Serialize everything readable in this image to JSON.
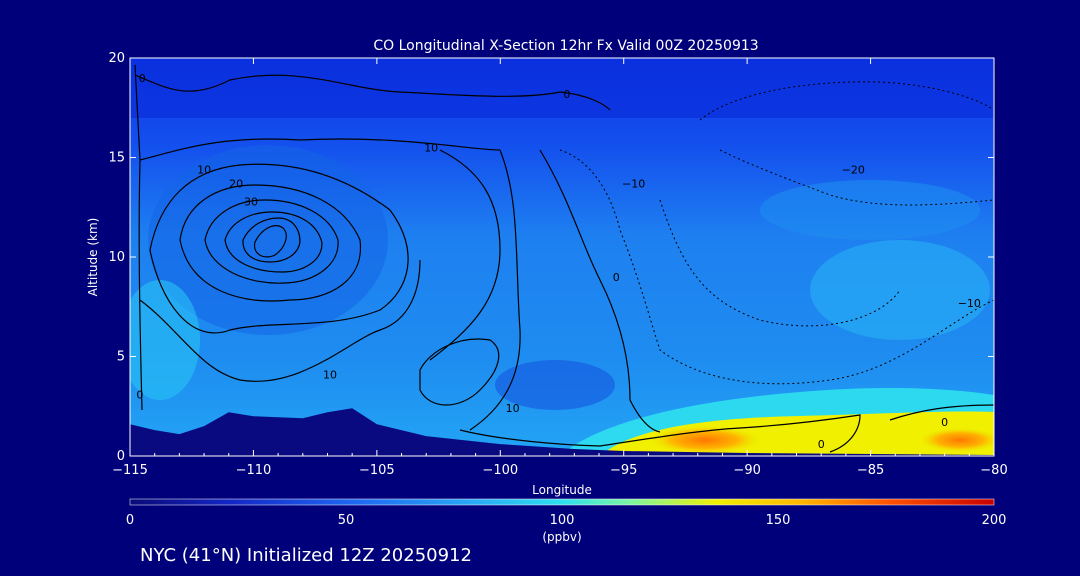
{
  "chart_data": {
    "type": "heatmap",
    "title": "CO Longitudinal X-Section 12hr  Fx Valid 00Z 20250913",
    "xlabel": "Longitude",
    "ylabel": "Altitude (km)",
    "xlim": [
      -115,
      -80
    ],
    "ylim": [
      0,
      20
    ],
    "x_ticks": [
      -115,
      -110,
      -105,
      -100,
      -95,
      -90,
      -85,
      -80
    ],
    "x_tick_labels": [
      "−115",
      "−110",
      "−105",
      "−100",
      "−95",
      "−90",
      "−85",
      "−80"
    ],
    "y_ticks": [
      0,
      5,
      10,
      15,
      20
    ],
    "y_tick_labels": [
      "0",
      "5",
      "10",
      "15",
      "20"
    ],
    "colorbar": {
      "min": 0,
      "max": 200,
      "ticks": [
        0,
        50,
        100,
        150,
        200
      ],
      "tick_labels": [
        "0",
        "50",
        "100",
        "150",
        "200"
      ],
      "unit": "(ppbv)",
      "colors": [
        "#0a0a78",
        "#1428c8",
        "#1e64f0",
        "#2aaaf5",
        "#2fe0ee",
        "#7df5a0",
        "#f0f000",
        "#ffb400",
        "#ff5000",
        "#c80000"
      ]
    },
    "terrain": [
      {
        "x": -115,
        "y": 1.6
      },
      {
        "x": -114,
        "y": 1.3
      },
      {
        "x": -113,
        "y": 1.1
      },
      {
        "x": -112,
        "y": 1.5
      },
      {
        "x": -111,
        "y": 2.2
      },
      {
        "x": -110,
        "y": 2.0
      },
      {
        "x": -108,
        "y": 1.9
      },
      {
        "x": -107,
        "y": 2.2
      },
      {
        "x": -106,
        "y": 2.4
      },
      {
        "x": -105,
        "y": 1.6
      },
      {
        "x": -103,
        "y": 1.0
      },
      {
        "x": -100,
        "y": 0.6
      },
      {
        "x": -97,
        "y": 0.35
      },
      {
        "x": -95,
        "y": 0.25
      },
      {
        "x": -90,
        "y": 0.15
      },
      {
        "x": -85,
        "y": 0.1
      },
      {
        "x": -80,
        "y": 0.05
      }
    ],
    "contour_labels": [
      {
        "text": "0",
        "x": -114.5,
        "y": 18.8
      },
      {
        "text": "0",
        "x": -97.3,
        "y": 18.0
      },
      {
        "text": "10",
        "x": -102.8,
        "y": 15.3
      },
      {
        "text": "10",
        "x": -112.0,
        "y": 14.2
      },
      {
        "text": "20",
        "x": -110.7,
        "y": 13.5
      },
      {
        "text": "30",
        "x": -110.1,
        "y": 12.6
      },
      {
        "text": "−10",
        "x": -94.6,
        "y": 13.5
      },
      {
        "text": "−20",
        "x": -85.7,
        "y": 14.2
      },
      {
        "text": "0",
        "x": -95.3,
        "y": 8.8
      },
      {
        "text": "−10",
        "x": -81.0,
        "y": 7.5
      },
      {
        "text": "10",
        "x": -106.9,
        "y": 3.9
      },
      {
        "text": "0",
        "x": -114.6,
        "y": 2.9
      },
      {
        "text": "10",
        "x": -99.5,
        "y": 2.2
      },
      {
        "text": "0",
        "x": -82.0,
        "y": 1.5
      },
      {
        "text": "0",
        "x": -87.0,
        "y": 0.4
      }
    ]
  },
  "footer": {
    "location_text": "NYC (41°N) Initialized 12Z 20250912"
  }
}
